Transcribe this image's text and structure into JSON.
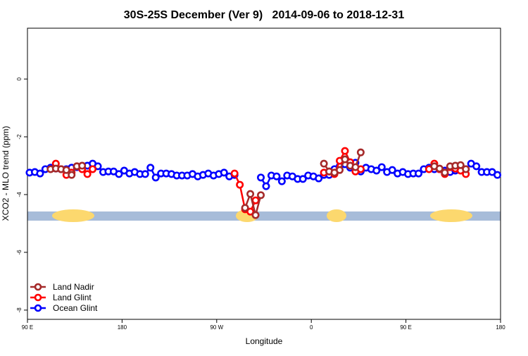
{
  "chart_data": {
    "type": "line",
    "title": "30S-25S December (Ver 9)   2014-09-06 to 2018-12-31",
    "x_label": "Longitude",
    "y_label": "XCO2 - MLO trend (ppm)",
    "xlim": [
      90,
      540
    ],
    "xticks": [
      {
        "value": 90,
        "label": "90 E"
      },
      180,
      {
        "value": 270,
        "label": "90 W"
      },
      {
        "value": 360,
        "label": "0"
      },
      {
        "value": 450,
        "label": "90 E"
      },
      {
        "value": 540,
        "label": "180"
      }
    ],
    "ylim": [
      -8.32,
      1.76
    ],
    "yticks": [
      0,
      -2,
      -4,
      -6,
      -8
    ],
    "legend": "bottom-left",
    "x": [
      92,
      97,
      102,
      107,
      112,
      117,
      122,
      127,
      132,
      137,
      142,
      147,
      152,
      157,
      162,
      167,
      172,
      177,
      182,
      187,
      192,
      197,
      202,
      207,
      212,
      217,
      222,
      227,
      232,
      237,
      242,
      247,
      252,
      257,
      262,
      267,
      272,
      277,
      282,
      287,
      292,
      297,
      302,
      307,
      312,
      317,
      322,
      327,
      332,
      337,
      342,
      347,
      352,
      357,
      362,
      367,
      372,
      377,
      382,
      387,
      392,
      397,
      402,
      407,
      412,
      417,
      422,
      427,
      432,
      437,
      442,
      447,
      452,
      457,
      462,
      467,
      472,
      477,
      482,
      487,
      492,
      497,
      502,
      507,
      512,
      517,
      522,
      527,
      532,
      537
    ],
    "series": [
      {
        "name": "Land Nadir",
        "color": "#a52a2a",
        "values": [
          null,
          null,
          null,
          null,
          -3.12,
          -3.1,
          -3.12,
          -3.15,
          -3.32,
          -3.02,
          -3.0,
          null,
          null,
          null,
          null,
          null,
          null,
          null,
          null,
          null,
          null,
          null,
          null,
          null,
          null,
          null,
          null,
          null,
          null,
          null,
          null,
          null,
          null,
          null,
          null,
          null,
          null,
          null,
          null,
          null,
          null,
          -4.46,
          -3.98,
          -4.71,
          -4.02,
          null,
          null,
          null,
          null,
          null,
          null,
          null,
          null,
          null,
          null,
          null,
          -2.93,
          -3.2,
          -3.24,
          -3.15,
          -2.78,
          -3.0,
          -3.05,
          -2.54,
          null,
          null,
          null,
          null,
          null,
          null,
          null,
          null,
          null,
          null,
          null,
          null,
          null,
          -3.02,
          -3.1,
          -3.24,
          -3.02,
          -3.0,
          -2.98,
          -3.12,
          null,
          null,
          null,
          null,
          null,
          null
        ]
      },
      {
        "name": "Land Glint",
        "color": "#ff0000",
        "values": [
          null,
          null,
          null,
          null,
          null,
          -2.93,
          -3.12,
          -3.32,
          -3.24,
          -3.02,
          -3.12,
          -3.29,
          -3.12,
          null,
          null,
          null,
          null,
          null,
          null,
          null,
          null,
          null,
          null,
          null,
          null,
          null,
          null,
          null,
          null,
          null,
          null,
          null,
          null,
          null,
          null,
          null,
          null,
          null,
          null,
          -3.27,
          -3.66,
          -4.51,
          -4.59,
          -4.2,
          null,
          null,
          null,
          null,
          null,
          null,
          null,
          null,
          null,
          null,
          null,
          null,
          -3.24,
          -3.2,
          -3.29,
          -2.83,
          -2.49,
          -2.88,
          -3.2,
          -3.12,
          null,
          null,
          null,
          null,
          null,
          null,
          null,
          null,
          null,
          null,
          null,
          null,
          -3.12,
          -2.93,
          -3.12,
          -3.29,
          -3.05,
          -3.1,
          -3.17,
          -3.29,
          null,
          null,
          null,
          null,
          null,
          null
        ]
      },
      {
        "name": "Ocean Glint",
        "color": "#0000ff",
        "values": [
          -3.24,
          -3.22,
          -3.27,
          -3.12,
          -3.07,
          -3.1,
          -3.12,
          -3.12,
          -3.07,
          -3.05,
          -3.05,
          -3.0,
          -2.93,
          -3.02,
          -3.22,
          -3.2,
          -3.2,
          -3.29,
          -3.17,
          -3.27,
          -3.22,
          -3.29,
          -3.29,
          -3.07,
          -3.41,
          -3.27,
          -3.27,
          -3.29,
          -3.34,
          -3.34,
          -3.34,
          -3.29,
          -3.37,
          -3.32,
          -3.27,
          -3.34,
          -3.29,
          -3.24,
          -3.37,
          -3.32,
          null,
          null,
          null,
          null,
          -3.41,
          -3.71,
          -3.34,
          -3.37,
          -3.54,
          -3.34,
          -3.37,
          -3.46,
          -3.46,
          -3.34,
          -3.37,
          -3.44,
          -3.32,
          -3.32,
          -3.12,
          -3.02,
          -2.95,
          -3.07,
          -2.9,
          -3.2,
          -3.07,
          -3.12,
          -3.17,
          -3.05,
          -3.22,
          -3.15,
          -3.27,
          -3.22,
          -3.29,
          -3.27,
          -3.27,
          -3.12,
          -3.07,
          -3.12,
          -3.12,
          -3.17,
          -3.22,
          -3.17,
          -3.12,
          -3.12,
          -2.93,
          -3.02,
          -3.22,
          -3.22,
          -3.22,
          -3.32
        ]
      }
    ]
  }
}
